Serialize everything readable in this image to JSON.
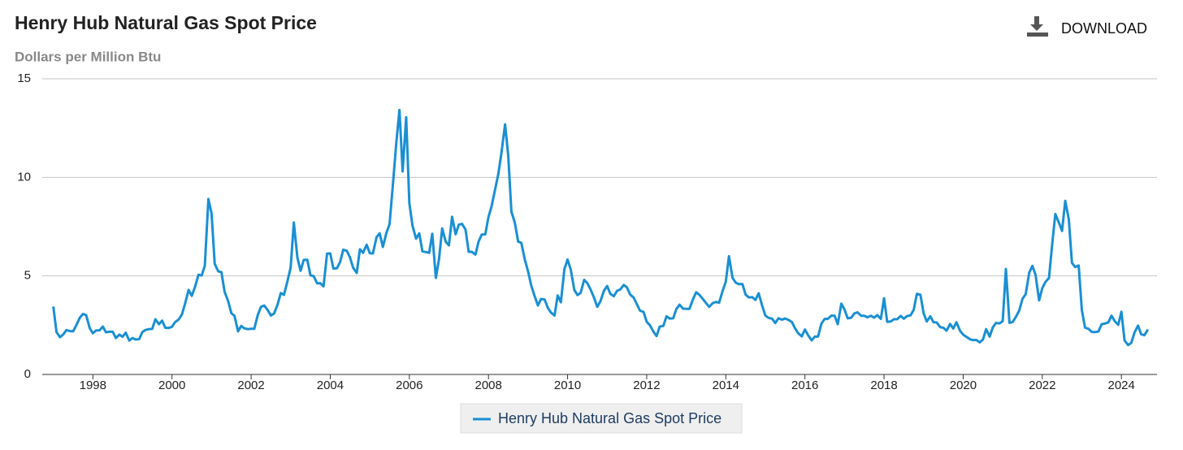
{
  "toolbar": {
    "download": "DOWNLOAD"
  },
  "chart_data": {
    "type": "line",
    "title": "Henry Hub Natural Gas Spot Price",
    "subtitle": "Dollars per Million Btu",
    "xlim": [
      1996.72,
      2024.9
    ],
    "xticks": [
      1998,
      2000,
      2002,
      2004,
      2006,
      2008,
      2010,
      2012,
      2014,
      2016,
      2018,
      2020,
      2022,
      2024
    ],
    "ylim": [
      0,
      15
    ],
    "yticks": [
      0,
      5,
      10,
      15
    ],
    "grid": true,
    "legend": "bottom",
    "x": [
      1997,
      1997.08,
      1997.17,
      1997.25,
      1997.33,
      1997.42,
      1997.5,
      1997.58,
      1997.67,
      1997.75,
      1997.83,
      1997.92,
      1998,
      1998.08,
      1998.17,
      1998.25,
      1998.33,
      1998.42,
      1998.5,
      1998.58,
      1998.67,
      1998.75,
      1998.83,
      1998.92,
      1999,
      1999.08,
      1999.17,
      1999.25,
      1999.33,
      1999.42,
      1999.5,
      1999.58,
      1999.67,
      1999.75,
      1999.83,
      1999.92,
      2000,
      2000.08,
      2000.17,
      2000.25,
      2000.33,
      2000.42,
      2000.5,
      2000.58,
      2000.67,
      2000.75,
      2000.83,
      2000.92,
      2001,
      2001.08,
      2001.17,
      2001.25,
      2001.33,
      2001.42,
      2001.5,
      2001.58,
      2001.67,
      2001.75,
      2001.83,
      2001.92,
      2002,
      2002.08,
      2002.17,
      2002.25,
      2002.33,
      2002.42,
      2002.5,
      2002.58,
      2002.67,
      2002.75,
      2002.83,
      2002.92,
      2003,
      2003.08,
      2003.17,
      2003.25,
      2003.33,
      2003.42,
      2003.5,
      2003.58,
      2003.67,
      2003.75,
      2003.83,
      2003.92,
      2004,
      2004.08,
      2004.17,
      2004.25,
      2004.33,
      2004.42,
      2004.5,
      2004.58,
      2004.67,
      2004.75,
      2004.83,
      2004.92,
      2005,
      2005.08,
      2005.17,
      2005.25,
      2005.33,
      2005.42,
      2005.5,
      2005.58,
      2005.67,
      2005.75,
      2005.83,
      2005.92,
      2006,
      2006.08,
      2006.17,
      2006.25,
      2006.33,
      2006.42,
      2006.5,
      2006.58,
      2006.67,
      2006.75,
      2006.83,
      2006.92,
      2007,
      2007.08,
      2007.17,
      2007.25,
      2007.33,
      2007.42,
      2007.5,
      2007.58,
      2007.67,
      2007.75,
      2007.83,
      2007.92,
      2008,
      2008.08,
      2008.17,
      2008.25,
      2008.33,
      2008.42,
      2008.5,
      2008.58,
      2008.67,
      2008.75,
      2008.83,
      2008.92,
      2009,
      2009.08,
      2009.17,
      2009.25,
      2009.33,
      2009.42,
      2009.5,
      2009.58,
      2009.67,
      2009.75,
      2009.83,
      2009.92,
      2010,
      2010.08,
      2010.17,
      2010.25,
      2010.33,
      2010.42,
      2010.5,
      2010.58,
      2010.67,
      2010.75,
      2010.83,
      2010.92,
      2011,
      2011.08,
      2011.17,
      2011.25,
      2011.33,
      2011.42,
      2011.5,
      2011.58,
      2011.67,
      2011.75,
      2011.83,
      2011.92,
      2012,
      2012.08,
      2012.17,
      2012.25,
      2012.33,
      2012.42,
      2012.5,
      2012.58,
      2012.67,
      2012.75,
      2012.83,
      2012.92,
      2013,
      2013.08,
      2013.17,
      2013.25,
      2013.33,
      2013.42,
      2013.5,
      2013.58,
      2013.67,
      2013.75,
      2013.83,
      2013.92,
      2014,
      2014.08,
      2014.17,
      2014.25,
      2014.33,
      2014.42,
      2014.5,
      2014.58,
      2014.67,
      2014.75,
      2014.83,
      2014.92,
      2015,
      2015.08,
      2015.17,
      2015.25,
      2015.33,
      2015.42,
      2015.5,
      2015.58,
      2015.67,
      2015.75,
      2015.83,
      2015.92,
      2016,
      2016.08,
      2016.17,
      2016.25,
      2016.33,
      2016.42,
      2016.5,
      2016.58,
      2016.67,
      2016.75,
      2016.83,
      2016.92,
      2017,
      2017.08,
      2017.17,
      2017.25,
      2017.33,
      2017.42,
      2017.5,
      2017.58,
      2017.67,
      2017.75,
      2017.83,
      2017.92,
      2018,
      2018.08,
      2018.17,
      2018.25,
      2018.33,
      2018.42,
      2018.5,
      2018.58,
      2018.67,
      2018.75,
      2018.83,
      2018.92,
      2019,
      2019.08,
      2019.17,
      2019.25,
      2019.33,
      2019.42,
      2019.5,
      2019.58,
      2019.67,
      2019.75,
      2019.83,
      2019.92,
      2020,
      2020.08,
      2020.17,
      2020.25,
      2020.33,
      2020.42,
      2020.5,
      2020.58,
      2020.67,
      2020.75,
      2020.83,
      2020.92,
      2021,
      2021.08,
      2021.17,
      2021.25,
      2021.33,
      2021.42,
      2021.5,
      2021.58,
      2021.67,
      2021.75,
      2021.83,
      2021.92,
      2022,
      2022.08,
      2022.17,
      2022.25,
      2022.33,
      2022.42,
      2022.5,
      2022.58,
      2022.67,
      2022.75,
      2022.83,
      2022.92,
      2023,
      2023.08,
      2023.17,
      2023.25,
      2023.33,
      2023.42,
      2023.5,
      2023.58,
      2023.67,
      2023.75,
      2023.83,
      2023.92,
      2024,
      2024.08,
      2024.17,
      2024.25,
      2024.33,
      2024.42,
      2024.5,
      2024.58,
      2024.67
    ],
    "series": [
      {
        "name": "Henry Hub Natural Gas Spot Price",
        "color": "#1a8fd3",
        "values": [
          3.45,
          2.15,
          1.89,
          2.03,
          2.25,
          2.2,
          2.19,
          2.49,
          2.88,
          3.07,
          3.01,
          2.35,
          2.09,
          2.23,
          2.24,
          2.43,
          2.14,
          2.17,
          2.17,
          1.85,
          2.02,
          1.91,
          2.12,
          1.72,
          1.85,
          1.77,
          1.79,
          2.15,
          2.26,
          2.3,
          2.31,
          2.8,
          2.55,
          2.73,
          2.37,
          2.36,
          2.42,
          2.66,
          2.79,
          3.04,
          3.59,
          4.29,
          3.99,
          4.43,
          5.06,
          5.02,
          5.52,
          8.9,
          8.17,
          5.61,
          5.23,
          5.19,
          4.19,
          3.72,
          3.11,
          2.97,
          2.19,
          2.46,
          2.34,
          2.3,
          2.32,
          2.32,
          3.03,
          3.43,
          3.5,
          3.26,
          2.99,
          3.09,
          3.55,
          4.13,
          4.04,
          4.74,
          5.43,
          7.71,
          5.93,
          5.26,
          5.81,
          5.82,
          5.03,
          4.99,
          4.62,
          4.63,
          4.47,
          6.13,
          6.14,
          5.37,
          5.39,
          5.71,
          6.33,
          6.27,
          5.93,
          5.41,
          5.15,
          6.35,
          6.17,
          6.58,
          6.15,
          6.14,
          6.96,
          7.16,
          6.47,
          7.18,
          7.63,
          9.53,
          11.75,
          13.42,
          10.3,
          13.05,
          8.69,
          7.54,
          6.89,
          7.16,
          6.25,
          6.21,
          6.17,
          7.14,
          4.9,
          5.85,
          7.41,
          6.73,
          6.55,
          8,
          7.11,
          7.6,
          7.64,
          7.35,
          6.22,
          6.22,
          6.08,
          6.74,
          7.1,
          7.11,
          7.99,
          8.54,
          9.41,
          10.18,
          11.27,
          12.69,
          11.09,
          8.26,
          7.67,
          6.74,
          6.68,
          5.82,
          5.24,
          4.52,
          3.96,
          3.5,
          3.83,
          3.8,
          3.38,
          3.14,
          2.99,
          4.01,
          3.66,
          5.35,
          5.83,
          5.32,
          4.29,
          4.03,
          4.14,
          4.8,
          4.63,
          4.32,
          3.89,
          3.43,
          3.71,
          4.25,
          4.49,
          4.09,
          3.97,
          4.24,
          4.31,
          4.54,
          4.42,
          4.06,
          3.9,
          3.57,
          3.24,
          3.17,
          2.67,
          2.5,
          2.17,
          1.95,
          2.43,
          2.46,
          2.95,
          2.84,
          2.85,
          3.32,
          3.54,
          3.34,
          3.33,
          3.33,
          3.81,
          4.17,
          4.04,
          3.83,
          3.62,
          3.43,
          3.62,
          3.68,
          3.64,
          4.24,
          4.71,
          6,
          4.9,
          4.66,
          4.58,
          4.59,
          4.05,
          3.91,
          3.92,
          3.78,
          4.12,
          3.48,
          2.99,
          2.87,
          2.83,
          2.61,
          2.85,
          2.78,
          2.84,
          2.77,
          2.66,
          2.34,
          2.09,
          1.93,
          2.28,
          1.99,
          1.73,
          1.92,
          1.92,
          2.59,
          2.82,
          2.82,
          2.99,
          2.98,
          2.55,
          3.59,
          3.3,
          2.85,
          2.88,
          3.1,
          3.15,
          2.98,
          2.98,
          2.9,
          2.98,
          2.88,
          3.01,
          2.82,
          3.87,
          2.67,
          2.69,
          2.8,
          2.8,
          2.97,
          2.83,
          2.96,
          3,
          3.28,
          4.09,
          4.04,
          3.11,
          2.69,
          2.95,
          2.65,
          2.64,
          2.4,
          2.37,
          2.22,
          2.56,
          2.33,
          2.65,
          2.22,
          2.02,
          1.91,
          1.79,
          1.74,
          1.75,
          1.63,
          1.77,
          2.3,
          1.92,
          2.39,
          2.61,
          2.59,
          2.71,
          5.35,
          2.62,
          2.66,
          2.91,
          3.26,
          3.84,
          4.07,
          5.16,
          5.51,
          5.05,
          3.76,
          4.38,
          4.69,
          4.9,
          6.6,
          8.14,
          7.7,
          7.28,
          8.81,
          7.88,
          5.66,
          5.45,
          5.53,
          3.27,
          2.38,
          2.31,
          2.16,
          2.15,
          2.18,
          2.55,
          2.58,
          2.64,
          2.98,
          2.71,
          2.52,
          3.18,
          1.72,
          1.49,
          1.6,
          2.12,
          2.48,
          2.04,
          1.99,
          2.28
        ]
      }
    ]
  }
}
